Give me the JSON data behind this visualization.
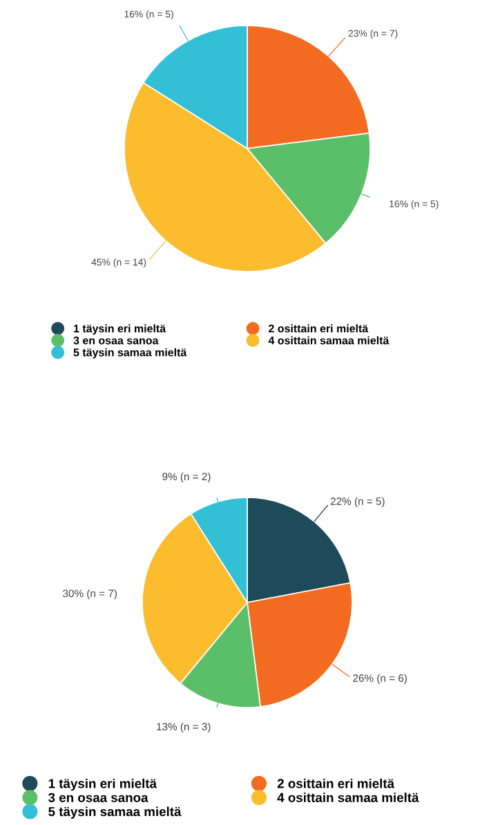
{
  "chart_data": [
    {
      "type": "pie",
      "categories": [
        "1 täysin eri mieltä",
        "2 osittain eri mieltä",
        "3 en osaa sanoa",
        "4 osittain samaa mieltä",
        "5 täysin samaa mieltä"
      ],
      "values": [
        0,
        23,
        16,
        45,
        16
      ],
      "value_labels": [
        null,
        "23% (n = 7)",
        "16% (n = 5)",
        "45% (n = 14)",
        "16% (n = 5)"
      ],
      "colors": [
        "#1f4a5a",
        "#f26b21",
        "#5bbf6a",
        "#fbbd2e",
        "#33c0d6"
      ],
      "legend": "bottom"
    },
    {
      "type": "pie",
      "categories": [
        "1 täysin eri mieltä",
        "2 osittain eri mieltä",
        "3 en osaa sanoa",
        "4 osittain samaa mieltä",
        "5 täysin samaa mieltä"
      ],
      "values": [
        22,
        26,
        13,
        30,
        9
      ],
      "value_labels": [
        "22% (n = 5)",
        "26% (n = 6)",
        "13% (n = 3)",
        "30% (n = 7)",
        "9% (n = 2)"
      ],
      "colors": [
        "#1f4a5a",
        "#f26b21",
        "#5bbf6a",
        "#fbbd2e",
        "#33c0d6"
      ],
      "legend": "bottom"
    }
  ]
}
